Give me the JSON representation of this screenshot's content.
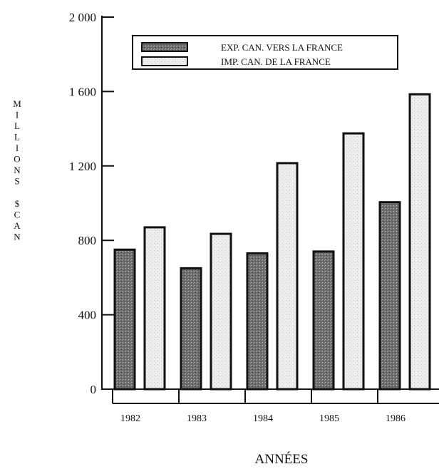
{
  "chart_data": {
    "type": "bar",
    "categories": [
      "1982",
      "1983",
      "1984",
      "1985",
      "1986"
    ],
    "series": [
      {
        "name": "EXP. CAN. VERS LA FRANCE",
        "values": [
          750,
          650,
          730,
          740,
          1005
        ],
        "color": "#7a7a7a"
      },
      {
        "name": "IMP. CAN. DE LA FRANCE",
        "values": [
          870,
          835,
          1215,
          1375,
          1585
        ],
        "color": "#e6e6e6"
      }
    ],
    "title": "",
    "xlabel": "ANNÉES",
    "ylabel_lines": [
      "MILLIONS",
      "$CAN"
    ],
    "ylim": [
      0,
      2000
    ],
    "yticks": [
      0,
      400,
      800,
      1200,
      1600,
      2000
    ],
    "ytick_labels": [
      "0",
      "400",
      "800",
      "1 200",
      "1 600",
      "2 000"
    ],
    "grid": false,
    "legend_position": "top-right"
  }
}
